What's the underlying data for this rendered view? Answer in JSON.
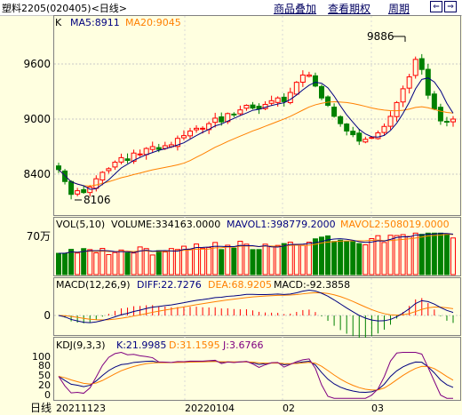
{
  "header": {
    "title": "塑料2205(020405)<日线>",
    "menu": [
      "商品叠加",
      "查看期权",
      "周期"
    ],
    "nav_prev": "⇐",
    "nav_next": "⇒"
  },
  "main_panel": {
    "tag": "K",
    "ma5_label": "MA5:8911",
    "ma20_label": "MA20:9045",
    "y_ticks": [
      "9600",
      "9000",
      "8400"
    ],
    "high_label": "9886",
    "low_label": "8106"
  },
  "volume_panel": {
    "legend_prefix": "VOL(5,10)",
    "volume_label": "VOLUME:334163.0000",
    "mavol1_label": "MAVOL1:398779.2000",
    "mavol2_label": "MAVOL2:508019.0000",
    "y_tick": "70万"
  },
  "macd_panel": {
    "legend_prefix": "MACD(12,26,9)",
    "diff_label": "DIFF:22.7276",
    "dea_label": "DEA:68.9205",
    "macd_label": "MACD:-92.3858",
    "y_tick": "0"
  },
  "kdj_panel": {
    "legend_prefix": "KDJ(9,3,3)",
    "k_label": "K:21.9985",
    "d_label": "D:31.1595",
    "j_label": "J:3.6766",
    "y_ticks": [
      "100",
      "80",
      "50",
      "20",
      "0"
    ]
  },
  "x_axis": {
    "unit_label": "日线",
    "labels": [
      "20211123",
      "20220104",
      "02",
      "03"
    ]
  },
  "colors": {
    "up": "#ff0000",
    "down": "#008000",
    "ma5": "#000080",
    "ma20": "#ff8000",
    "grid": "#c0c0c0",
    "background": "#ffffe0"
  },
  "chart_data": {
    "type": "candlestick",
    "title": "塑料2205(020405)<日线>",
    "y_ticks": [
      9600,
      9000,
      8400
    ],
    "annotated_high": 9886,
    "annotated_low": 8106,
    "indicators": {
      "MA5": 8911,
      "MA20": 9045,
      "VOLUME": 334163.0,
      "MAVOL1": 398779.2,
      "MAVOL2": 508019.0,
      "DIFF": 22.7276,
      "DEA": 68.9205,
      "MACD": -92.3858,
      "K": 21.9985,
      "D": 31.1595,
      "J": 3.6766
    },
    "close_path": [
      8450,
      8320,
      8180,
      8220,
      8200,
      8260,
      8350,
      8420,
      8460,
      8530,
      8580,
      8550,
      8630,
      8620,
      8680,
      8700,
      8670,
      8710,
      8720,
      8790,
      8820,
      8870,
      8900,
      8900,
      8950,
      9010,
      8970,
      9060,
      9050,
      9100,
      9150,
      9120,
      9110,
      9160,
      9200,
      9230,
      9190,
      9290,
      9400,
      9480,
      9480,
      9360,
      9230,
      9150,
      9030,
      8950,
      8870,
      8830,
      8760,
      8780,
      8800,
      8850,
      8920,
      9030,
      9180,
      9330,
      9460,
      9650,
      9540,
      9260,
      9110,
      8980,
      8970,
      9000
    ]
  }
}
